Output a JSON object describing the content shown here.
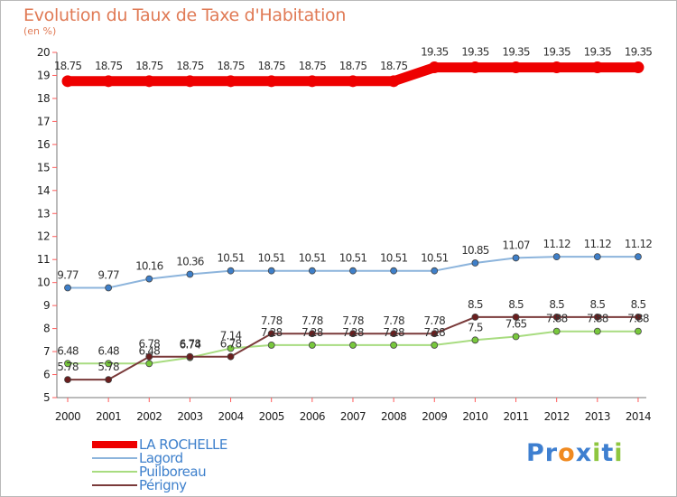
{
  "title": "Evolution du Taux de Taxe d'Habitation",
  "unit_label": "(en %)",
  "logo": {
    "letters": [
      "P",
      "r",
      "o",
      "x",
      "i",
      "t",
      "i"
    ],
    "colors": [
      "#3e7fd0",
      "#3e7fd0",
      "#f08a20",
      "#3e7fd0",
      "#8ec63f",
      "#3e7fd0",
      "#8ec63f"
    ]
  },
  "chart_data": {
    "type": "line",
    "x": [
      "2000",
      "2001",
      "2002",
      "2003",
      "2004",
      "2005",
      "2006",
      "2007",
      "2008",
      "2009",
      "2010",
      "2011",
      "2012",
      "2013",
      "2014"
    ],
    "ylim": [
      5,
      20
    ],
    "yticks": [
      "5",
      "6",
      "7",
      "8",
      "9",
      "10",
      "11",
      "12",
      "13",
      "14",
      "15",
      "16",
      "17",
      "18",
      "19",
      "20"
    ],
    "grid": false,
    "legend_position": "bottom-left",
    "series": [
      {
        "name": "LA ROCHELLE",
        "color": "#ee0000",
        "marker_color": "#ee0000",
        "emphasis": true,
        "values": [
          18.75,
          18.75,
          18.75,
          18.75,
          18.75,
          18.75,
          18.75,
          18.75,
          18.75,
          19.35,
          19.35,
          19.35,
          19.35,
          19.35,
          19.35
        ],
        "labels": [
          "18.75",
          "18.75",
          "18.75",
          "18.75",
          "18.75",
          "18.75",
          "18.75",
          "18.75",
          "18.75",
          "19.35",
          "19.35",
          "19.35",
          "19.35",
          "19.35",
          "19.35"
        ]
      },
      {
        "name": "Lagord",
        "color": "#8cb4dc",
        "marker_color": "#3e7fc9",
        "emphasis": false,
        "values": [
          9.77,
          9.77,
          10.16,
          10.36,
          10.51,
          10.51,
          10.51,
          10.51,
          10.51,
          10.51,
          10.85,
          11.07,
          11.12,
          11.12,
          11.12
        ],
        "labels": [
          "9.77",
          "9.77",
          "10.16",
          "10.36",
          "10.51",
          "10.51",
          "10.51",
          "10.51",
          "10.51",
          "10.51",
          "10.85",
          "11.07",
          "11.12",
          "11.12",
          "11.12"
        ]
      },
      {
        "name": "Puilboreau",
        "color": "#a8dc80",
        "marker_color": "#78c83c",
        "emphasis": false,
        "values": [
          6.48,
          6.48,
          6.48,
          6.74,
          7.14,
          7.28,
          7.28,
          7.28,
          7.28,
          7.28,
          7.5,
          7.65,
          7.88,
          7.88,
          7.88
        ],
        "labels": [
          "6.48",
          "6.48",
          "6.48",
          "6.74",
          "7.14",
          "7.28",
          "7.28",
          "7.28",
          "7.28",
          "7.28",
          "7.5",
          "7.65",
          "7.88",
          "7.88",
          "7.88"
        ]
      },
      {
        "name": "Périgny",
        "color": "#7a3a3a",
        "marker_color": "#6a1e1e",
        "emphasis": false,
        "values": [
          5.78,
          5.78,
          6.78,
          6.78,
          6.78,
          7.78,
          7.78,
          7.78,
          7.78,
          7.78,
          8.5,
          8.5,
          8.5,
          8.5,
          8.5
        ],
        "labels": [
          "5.78",
          "5.78",
          "6.78",
          "6.78",
          "6.78",
          "7.78",
          "7.78",
          "7.78",
          "7.78",
          "7.78",
          "8.5",
          "8.5",
          "8.5",
          "8.5",
          "8.5"
        ]
      }
    ]
  }
}
